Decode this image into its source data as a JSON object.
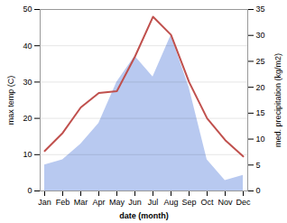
{
  "chart_data": {
    "type": "line",
    "categories": [
      "Jan",
      "Feb",
      "Mar",
      "Apr",
      "May",
      "Jun",
      "Jul",
      "Aug",
      "Sep",
      "Oct",
      "Nov",
      "Dec"
    ],
    "xlabel": "date (month)",
    "ylabel": "max temp (C)",
    "y2label": "med. precipitation (kg/m2)",
    "series": [
      {
        "type": "area",
        "axis": "y2",
        "color": "#b8c9f0",
        "values": [
          5,
          6,
          9,
          13,
          21,
          26,
          22,
          30,
          20,
          6,
          2,
          3
        ]
      },
      {
        "type": "line",
        "color": "#c0504d",
        "values": [
          11,
          16,
          23,
          27,
          27.5,
          37,
          48,
          43,
          30,
          20,
          14,
          9.5
        ]
      }
    ],
    "ylim": [
      0,
      50
    ],
    "yticks": [
      0,
      10,
      20,
      30,
      40,
      50
    ],
    "y2lim": [
      0,
      35
    ],
    "y2ticks": [
      0,
      5,
      10,
      15,
      20,
      25,
      30,
      35
    ],
    "grid": true
  }
}
